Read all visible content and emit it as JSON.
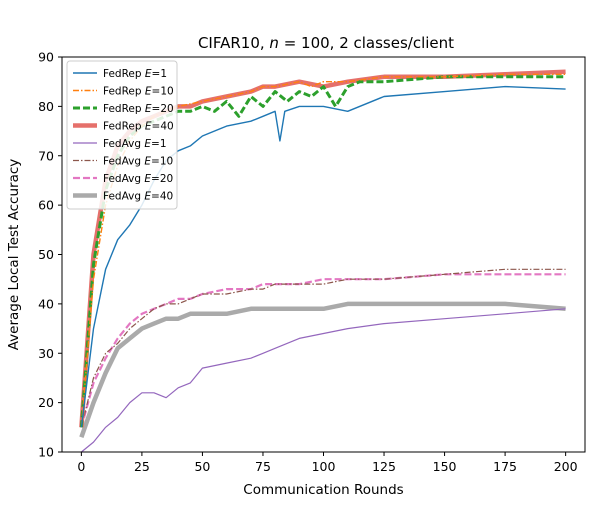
{
  "chart_data": {
    "type": "line",
    "title": "CIFAR10, n = 100, 2 classes/client",
    "title_parts": [
      "CIFAR10, ",
      "n",
      " = 100, 2 classes/client"
    ],
    "xlabel": "Communication Rounds",
    "ylabel": "Average Local Test Accuracy",
    "xlim": [
      -8,
      208
    ],
    "ylim": [
      10,
      90
    ],
    "xticks": [
      0,
      25,
      50,
      75,
      100,
      125,
      150,
      175,
      200
    ],
    "yticks": [
      10,
      20,
      30,
      40,
      50,
      60,
      70,
      80,
      90
    ],
    "grid": false,
    "legend_position": "top-left",
    "series": [
      {
        "name": "FedRep E=1",
        "label_prefix": "FedRep ",
        "label_var": "E",
        "label_suffix": "=1",
        "color": "#1f77b4",
        "style": "solid",
        "width": 1.4,
        "x": [
          0,
          5,
          10,
          15,
          20,
          25,
          30,
          35,
          40,
          45,
          50,
          60,
          70,
          75,
          80,
          82,
          84,
          90,
          100,
          110,
          125,
          150,
          175,
          200
        ],
        "y": [
          15,
          35,
          47,
          53,
          56,
          60,
          65,
          69,
          71,
          72,
          74,
          76,
          77,
          78,
          79,
          73,
          79,
          80,
          80,
          79,
          82,
          83,
          84,
          83.5
        ]
      },
      {
        "name": "FedRep E=10",
        "label_prefix": "FedRep ",
        "label_var": "E",
        "label_suffix": "=10",
        "color": "#ff7f0e",
        "style": "dashdot",
        "width": 1.4,
        "x": [
          0,
          5,
          10,
          15,
          20,
          25,
          30,
          35,
          40,
          45,
          50,
          60,
          70,
          75,
          80,
          90,
          95,
          100,
          110,
          125,
          150,
          175,
          200
        ],
        "y": [
          15,
          45,
          60,
          68,
          73,
          76,
          78,
          79,
          80,
          80.5,
          81,
          82,
          83,
          84,
          84,
          85,
          84,
          85,
          85,
          86,
          86,
          86.5,
          86.5
        ]
      },
      {
        "name": "FedRep E=20",
        "label_prefix": "FedRep ",
        "label_var": "E",
        "label_suffix": "=20",
        "color": "#2ca02c",
        "style": "dashed",
        "width": 3,
        "x": [
          0,
          5,
          10,
          15,
          20,
          25,
          30,
          35,
          40,
          45,
          50,
          55,
          60,
          65,
          70,
          75,
          80,
          85,
          90,
          95,
          100,
          105,
          110,
          115,
          125,
          150,
          175,
          200
        ],
        "y": [
          15,
          48,
          63,
          70,
          74,
          76,
          77,
          78,
          79,
          79,
          80,
          79,
          81,
          78,
          82,
          80,
          83,
          81,
          83,
          82,
          84,
          80,
          84,
          85,
          85,
          86,
          86,
          86
        ]
      },
      {
        "name": "FedRep E=40",
        "label_prefix": "FedRep ",
        "label_var": "E",
        "label_suffix": "=40",
        "color": "#e5706b",
        "style": "solid",
        "width": 4.5,
        "x": [
          0,
          5,
          10,
          15,
          20,
          25,
          30,
          35,
          40,
          45,
          50,
          60,
          70,
          75,
          80,
          90,
          100,
          110,
          125,
          150,
          175,
          200
        ],
        "y": [
          15,
          50,
          65,
          72,
          75,
          77,
          78,
          79,
          80,
          80,
          81,
          82,
          83,
          84,
          84,
          85,
          84,
          85,
          86,
          86,
          86.5,
          87
        ]
      },
      {
        "name": "FedAvg E=1",
        "label_prefix": "FedAvg ",
        "label_var": "E",
        "label_suffix": "=1",
        "color": "#9467bd",
        "style": "solid",
        "width": 1.2,
        "x": [
          0,
          5,
          10,
          15,
          20,
          25,
          30,
          35,
          40,
          45,
          50,
          60,
          70,
          75,
          80,
          90,
          100,
          110,
          125,
          150,
          175,
          200
        ],
        "y": [
          10,
          12,
          15,
          17,
          20,
          22,
          22,
          21,
          23,
          24,
          27,
          28,
          29,
          30,
          31,
          33,
          34,
          35,
          36,
          37,
          38,
          39
        ]
      },
      {
        "name": "FedAvg E=10",
        "label_prefix": "FedAvg ",
        "label_var": "E",
        "label_suffix": "=10",
        "color": "#8c564b",
        "style": "dashdot",
        "width": 1.2,
        "x": [
          0,
          5,
          10,
          15,
          20,
          25,
          30,
          35,
          40,
          45,
          50,
          60,
          70,
          75,
          80,
          90,
          100,
          110,
          125,
          150,
          175,
          200
        ],
        "y": [
          15,
          25,
          30,
          32,
          35,
          37,
          39,
          40,
          40,
          41,
          42,
          42,
          43,
          43,
          44,
          44,
          44,
          45,
          45,
          46,
          47,
          47
        ]
      },
      {
        "name": "FedAvg E=20",
        "label_prefix": "FedAvg ",
        "label_var": "E",
        "label_suffix": "=20",
        "color": "#e377c2",
        "style": "dashed",
        "width": 2.2,
        "x": [
          0,
          5,
          10,
          15,
          20,
          25,
          30,
          35,
          40,
          45,
          50,
          60,
          70,
          75,
          80,
          90,
          100,
          110,
          125,
          150,
          175,
          200
        ],
        "y": [
          15,
          24,
          29,
          33,
          36,
          38,
          39,
          40,
          41,
          41,
          42,
          43,
          43,
          44,
          44,
          44,
          45,
          45,
          45,
          46,
          46,
          46
        ]
      },
      {
        "name": "FedAvg E=40",
        "label_prefix": "FedAvg ",
        "label_var": "E",
        "label_suffix": "=40",
        "color": "#aaaaaa",
        "style": "solid",
        "width": 4.5,
        "x": [
          0,
          5,
          10,
          15,
          20,
          25,
          30,
          35,
          40,
          45,
          50,
          60,
          70,
          75,
          80,
          90,
          100,
          110,
          125,
          150,
          175,
          200
        ],
        "y": [
          13,
          20,
          26,
          31,
          33,
          35,
          36,
          37,
          37,
          38,
          38,
          38,
          39,
          39,
          39,
          39,
          39,
          40,
          40,
          40,
          40,
          39
        ]
      }
    ]
  }
}
